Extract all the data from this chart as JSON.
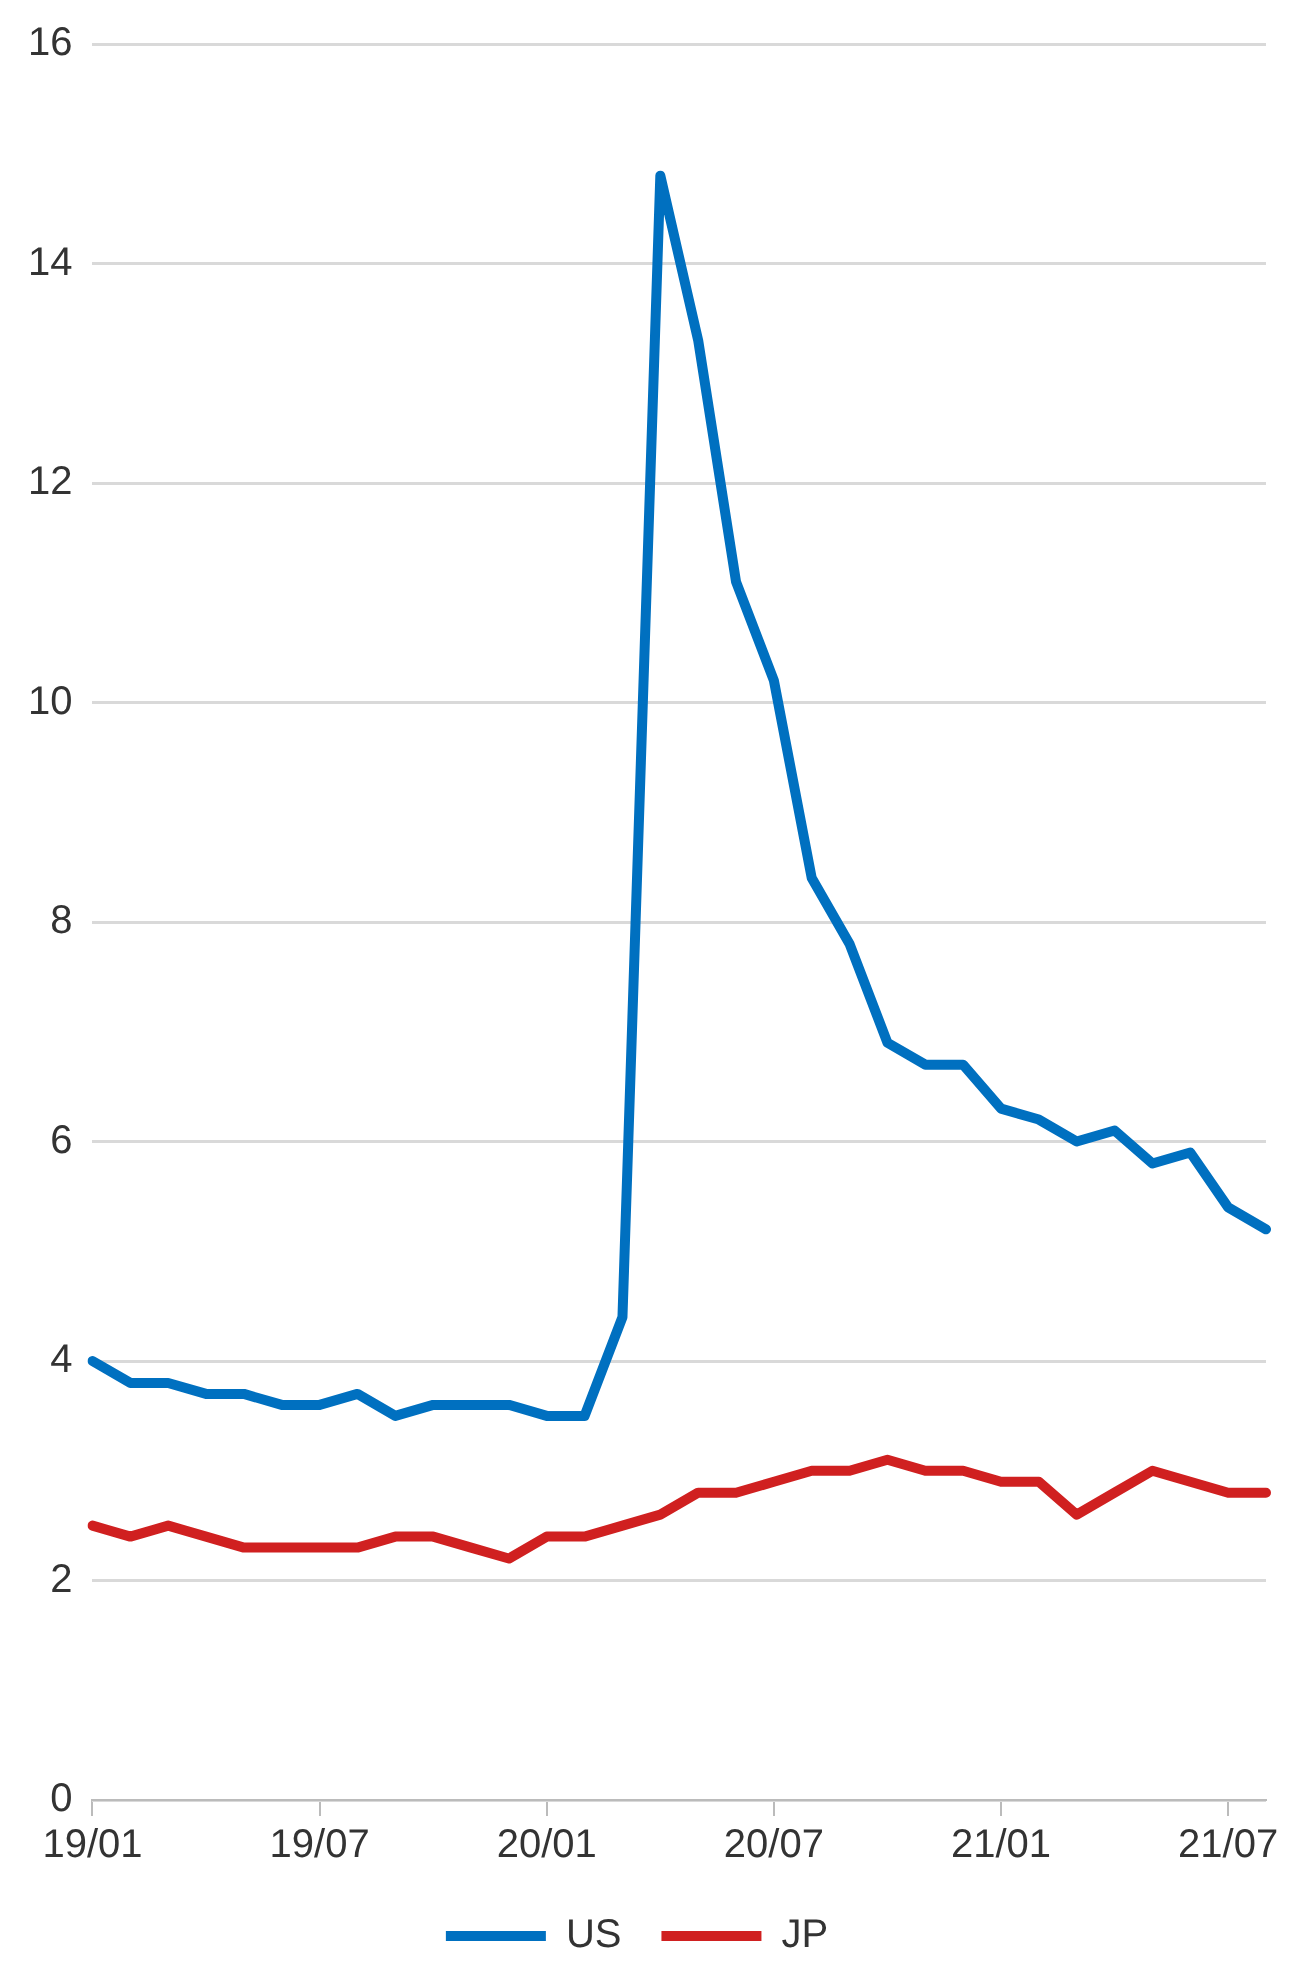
{
  "chart_data": {
    "type": "line",
    "categories": [
      "19/01",
      null,
      null,
      null,
      null,
      null,
      "19/07",
      null,
      null,
      null,
      null,
      null,
      "20/01",
      null,
      null,
      null,
      null,
      null,
      "20/07",
      null,
      null,
      null,
      null,
      null,
      "21/01",
      null,
      null,
      null,
      null,
      null,
      "21/07",
      null
    ],
    "series": [
      {
        "name": "US",
        "color": "#0070c0",
        "values": [
          4.0,
          3.8,
          3.8,
          3.7,
          3.7,
          3.6,
          3.6,
          3.7,
          3.5,
          3.6,
          3.6,
          3.6,
          3.5,
          3.5,
          4.4,
          14.8,
          13.3,
          11.1,
          10.2,
          8.4,
          7.8,
          6.9,
          6.7,
          6.7,
          6.3,
          6.2,
          6.0,
          6.1,
          5.8,
          5.9,
          5.4,
          5.2
        ]
      },
      {
        "name": "JP",
        "color": "#d02020",
        "values": [
          2.5,
          2.4,
          2.5,
          2.4,
          2.3,
          2.3,
          2.3,
          2.3,
          2.4,
          2.4,
          2.3,
          2.2,
          2.4,
          2.4,
          2.5,
          2.6,
          2.8,
          2.8,
          2.9,
          3.0,
          3.0,
          3.1,
          3.0,
          3.0,
          2.9,
          2.9,
          2.6,
          2.8,
          3.0,
          2.9,
          2.8,
          2.8
        ]
      }
    ],
    "ylim": [
      0,
      16
    ],
    "yticks": [
      0,
      2,
      4,
      6,
      8,
      10,
      12,
      14,
      16
    ],
    "grid": "y",
    "legend": "bottom",
    "marker": "none",
    "line_style": "solid"
  }
}
